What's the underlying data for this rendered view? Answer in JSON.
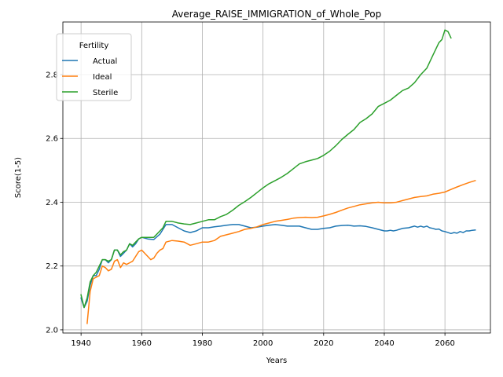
{
  "chart_data": {
    "type": "line",
    "title": "Average_RAISE_IMMIGRATION_of_Whole_Pop",
    "xlabel": "Years",
    "ylabel": "Score(1-5)",
    "xlim": [
      1934,
      2075
    ],
    "ylim": [
      1.99,
      2.965
    ],
    "xticks": [
      1940,
      1960,
      1980,
      2000,
      2020,
      2040,
      2060
    ],
    "yticks": [
      2.0,
      2.2,
      2.4,
      2.6,
      2.8
    ],
    "ytick_labels": [
      "2.0",
      "2.2",
      "2.4",
      "2.6",
      "2.8"
    ],
    "grid": true,
    "legend": {
      "title": "Fertility",
      "placement": "top-left"
    },
    "series": [
      {
        "name": "Actual",
        "color": "#1f77b4",
        "x": [
          1940,
          1941,
          1942,
          1943,
          1944,
          1945,
          1946,
          1947,
          1948,
          1949,
          1950,
          1951,
          1952,
          1953,
          1954,
          1955,
          1956,
          1957,
          1958,
          1959,
          1960,
          1962,
          1964,
          1966,
          1968,
          1970,
          1972,
          1974,
          1976,
          1978,
          1980,
          1982,
          1984,
          1986,
          1988,
          1990,
          1992,
          1994,
          1996,
          1998,
          2000,
          2002,
          2004,
          2006,
          2008,
          2010,
          2012,
          2014,
          2016,
          2018,
          2020,
          2022,
          2024,
          2026,
          2028,
          2030,
          2032,
          2034,
          2036,
          2038,
          2040,
          2041,
          2042,
          2043,
          2044,
          2045,
          2046,
          2048,
          2050,
          2051,
          2052,
          2053,
          2054,
          2055,
          2056,
          2057,
          2058,
          2059,
          2060,
          2061,
          2062,
          2063,
          2064,
          2065,
          2066,
          2067,
          2068,
          2069,
          2070
        ],
        "y": [
          2.1,
          2.07,
          2.09,
          2.14,
          2.17,
          2.17,
          2.19,
          2.22,
          2.22,
          2.21,
          2.22,
          2.25,
          2.25,
          2.23,
          2.24,
          2.25,
          2.27,
          2.26,
          2.27,
          2.285,
          2.29,
          2.285,
          2.283,
          2.3,
          2.33,
          2.33,
          2.32,
          2.31,
          2.305,
          2.31,
          2.32,
          2.32,
          2.323,
          2.325,
          2.328,
          2.33,
          2.33,
          2.325,
          2.32,
          2.322,
          2.325,
          2.328,
          2.33,
          2.328,
          2.325,
          2.325,
          2.325,
          2.32,
          2.315,
          2.315,
          2.318,
          2.32,
          2.325,
          2.327,
          2.328,
          2.325,
          2.326,
          2.324,
          2.32,
          2.315,
          2.31,
          2.31,
          2.312,
          2.31,
          2.312,
          2.315,
          2.318,
          2.32,
          2.325,
          2.322,
          2.325,
          2.322,
          2.325,
          2.32,
          2.318,
          2.315,
          2.316,
          2.31,
          2.308,
          2.305,
          2.302,
          2.305,
          2.303,
          2.308,
          2.305,
          2.31,
          2.31,
          2.312,
          2.313
        ]
      },
      {
        "name": "Ideal",
        "color": "#ff7f0e",
        "x": [
          1942,
          1943,
          1944,
          1945,
          1946,
          1947,
          1948,
          1949,
          1950,
          1951,
          1952,
          1953,
          1954,
          1955,
          1956,
          1957,
          1958,
          1959,
          1960,
          1961,
          1962,
          1963,
          1964,
          1965,
          1966,
          1967,
          1968,
          1970,
          1972,
          1974,
          1976,
          1978,
          1980,
          1982,
          1984,
          1986,
          1988,
          1990,
          1992,
          1994,
          1996,
          1998,
          2000,
          2002,
          2004,
          2006,
          2008,
          2010,
          2012,
          2014,
          2016,
          2018,
          2020,
          2022,
          2024,
          2026,
          2028,
          2030,
          2032,
          2034,
          2036,
          2038,
          2040,
          2042,
          2044,
          2046,
          2048,
          2050,
          2052,
          2054,
          2056,
          2058,
          2060,
          2062,
          2064,
          2066,
          2068,
          2070
        ],
        "y": [
          2.02,
          2.12,
          2.16,
          2.165,
          2.17,
          2.2,
          2.195,
          2.185,
          2.19,
          2.215,
          2.22,
          2.195,
          2.21,
          2.205,
          2.21,
          2.215,
          2.23,
          2.245,
          2.25,
          2.24,
          2.23,
          2.22,
          2.225,
          2.24,
          2.25,
          2.255,
          2.275,
          2.28,
          2.278,
          2.275,
          2.265,
          2.27,
          2.275,
          2.275,
          2.28,
          2.293,
          2.298,
          2.303,
          2.308,
          2.315,
          2.318,
          2.323,
          2.33,
          2.335,
          2.34,
          2.343,
          2.346,
          2.35,
          2.352,
          2.353,
          2.352,
          2.353,
          2.357,
          2.362,
          2.368,
          2.375,
          2.382,
          2.387,
          2.392,
          2.395,
          2.398,
          2.4,
          2.398,
          2.398,
          2.4,
          2.405,
          2.41,
          2.415,
          2.418,
          2.42,
          2.425,
          2.428,
          2.432,
          2.44,
          2.448,
          2.455,
          2.462,
          2.468
        ]
      },
      {
        "name": "Sterile",
        "color": "#2ca02c",
        "x": [
          1940,
          1941,
          1942,
          1943,
          1944,
          1945,
          1946,
          1947,
          1948,
          1949,
          1950,
          1951,
          1952,
          1953,
          1954,
          1955,
          1956,
          1957,
          1958,
          1959,
          1960,
          1962,
          1964,
          1966,
          1967,
          1968,
          1970,
          1972,
          1974,
          1976,
          1978,
          1980,
          1982,
          1984,
          1986,
          1988,
          1990,
          1992,
          1994,
          1996,
          1998,
          2000,
          2002,
          2004,
          2006,
          2008,
          2010,
          2012,
          2014,
          2016,
          2018,
          2020,
          2022,
          2024,
          2026,
          2028,
          2030,
          2032,
          2034,
          2036,
          2038,
          2040,
          2042,
          2044,
          2046,
          2048,
          2050,
          2052,
          2054,
          2056,
          2058,
          2059,
          2060,
          2061,
          2062
        ],
        "y": [
          2.11,
          2.07,
          2.1,
          2.15,
          2.17,
          2.18,
          2.2,
          2.22,
          2.22,
          2.215,
          2.22,
          2.25,
          2.25,
          2.235,
          2.245,
          2.25,
          2.27,
          2.265,
          2.275,
          2.285,
          2.29,
          2.29,
          2.29,
          2.31,
          2.32,
          2.34,
          2.34,
          2.335,
          2.332,
          2.33,
          2.335,
          2.34,
          2.345,
          2.345,
          2.355,
          2.362,
          2.375,
          2.39,
          2.402,
          2.415,
          2.43,
          2.445,
          2.458,
          2.468,
          2.478,
          2.49,
          2.505,
          2.52,
          2.527,
          2.532,
          2.537,
          2.547,
          2.56,
          2.577,
          2.597,
          2.613,
          2.628,
          2.65,
          2.662,
          2.677,
          2.7,
          2.71,
          2.72,
          2.735,
          2.75,
          2.758,
          2.775,
          2.8,
          2.82,
          2.86,
          2.9,
          2.91,
          2.94,
          2.935,
          2.915
        ]
      }
    ]
  }
}
